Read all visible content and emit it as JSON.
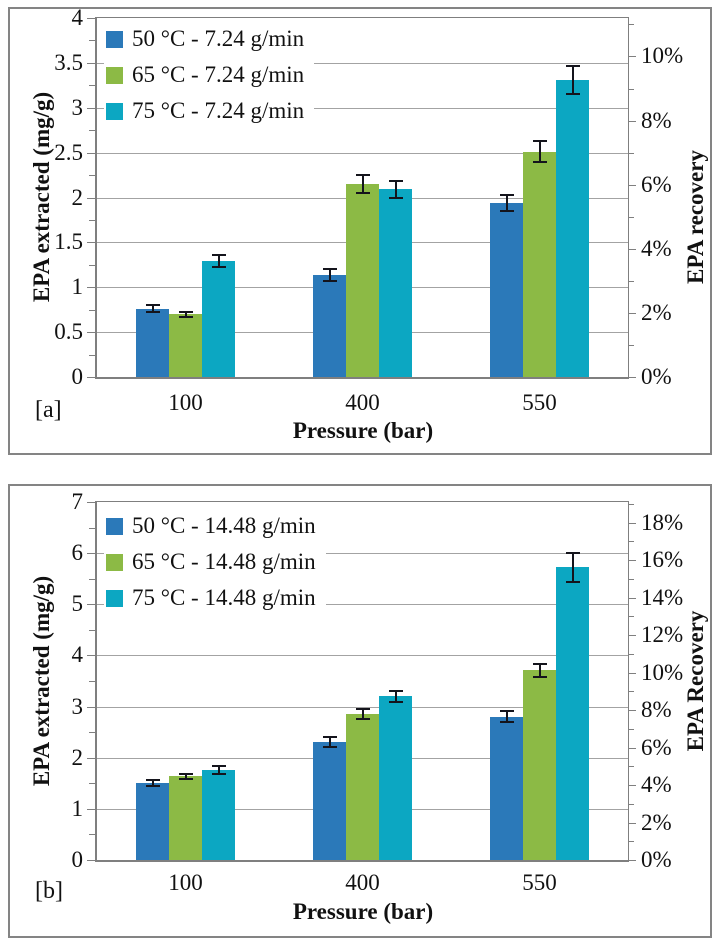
{
  "figure": {
    "panel_a_label": "[a]",
    "panel_b_label": "[b]"
  },
  "colors": {
    "series_blue": "#2B79B9",
    "series_green": "#8CBA45",
    "series_teal": "#0CA7C2",
    "error_bar": "#14141c",
    "gridline": "#a3a3a3",
    "axis_line": "#7f7f7f",
    "panel_border": "#848484",
    "text": "#111111"
  },
  "chart_data": [
    {
      "type": "bar",
      "panel_label": "[a]",
      "categories": [
        "100",
        "400",
        "550"
      ],
      "xlabel": "Pressure (bar)",
      "ylabel_left": "EPA extracted (mg/g)",
      "ylabel_right": "EPA recovery",
      "y_left": {
        "min": 0,
        "max": 4,
        "major_step": 0.5,
        "minor_step": 0.25,
        "tick_labels": [
          "0",
          "0.5",
          "1",
          "1.5",
          "2",
          "2.5",
          "3",
          "3.5",
          "4"
        ]
      },
      "y_right": {
        "major_step_pct": 2,
        "minor_step_pct": 1,
        "axis_max_pct": 11.2,
        "tick_labels": [
          "0%",
          "2%",
          "4%",
          "6%",
          "8%",
          "10%"
        ]
      },
      "grid": true,
      "legend_position": "top-left",
      "series": [
        {
          "name": "50 °C - 7.24 g/min",
          "color_key": "series_blue",
          "values": [
            0.76,
            1.14,
            1.94
          ],
          "errors": [
            0.05,
            0.08,
            0.1
          ]
        },
        {
          "name": "65 °C - 7.24 g/min",
          "color_key": "series_green",
          "values": [
            0.7,
            2.15,
            2.51
          ],
          "errors": [
            0.04,
            0.11,
            0.13
          ]
        },
        {
          "name": "75 °C - 7.24 g/min",
          "color_key": "series_teal",
          "values": [
            1.29,
            2.09,
            3.31
          ],
          "errors": [
            0.08,
            0.11,
            0.17
          ]
        }
      ]
    },
    {
      "type": "bar",
      "panel_label": "[b]",
      "categories": [
        "100",
        "400",
        "550"
      ],
      "xlabel": "Pressure (bar)",
      "ylabel_left": "EPA extracted (mg/g)",
      "ylabel_right": "EPA Recovery",
      "y_left": {
        "min": 0,
        "max": 7,
        "major_step": 1,
        "minor_step": 0.5,
        "tick_labels": [
          "0",
          "1",
          "2",
          "3",
          "4",
          "5",
          "6",
          "7"
        ]
      },
      "y_right": {
        "major_step_pct": 2,
        "minor_step_pct": 1,
        "axis_max_pct": 19.1,
        "tick_labels": [
          "0%",
          "2%",
          "4%",
          "6%",
          "8%",
          "10%",
          "12%",
          "14%",
          "16%",
          "18%"
        ]
      },
      "grid": true,
      "legend_position": "top-left",
      "series": [
        {
          "name": "50 °C - 14.48 g/min",
          "color_key": "series_blue",
          "values": [
            1.5,
            2.3,
            2.8
          ],
          "errors": [
            0.08,
            0.12,
            0.13
          ]
        },
        {
          "name": "65 °C - 14.48 g/min",
          "color_key": "series_green",
          "values": [
            1.64,
            2.86,
            3.71
          ],
          "errors": [
            0.07,
            0.12,
            0.15
          ]
        },
        {
          "name": "75 °C - 14.48 g/min",
          "color_key": "series_teal",
          "values": [
            1.76,
            3.2,
            5.72
          ],
          "errors": [
            0.09,
            0.13,
            0.3
          ]
        }
      ]
    }
  ]
}
